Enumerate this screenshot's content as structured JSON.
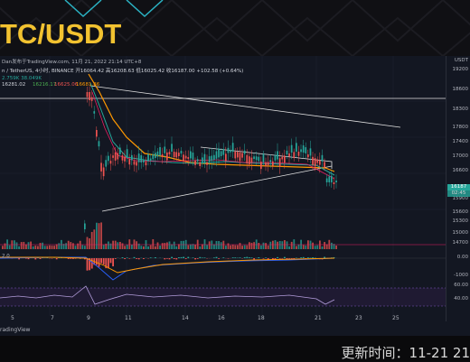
{
  "header": {
    "title": "TC/USDT"
  },
  "chart": {
    "credit": "Dan发布于TradingView.com, 11月 21, 2022 21:14 UTC+8",
    "symbol_line": "n / TetherUS, 4小时, BINANCE  开16064.42 高16208.63 低16025.42 收16187.00 +102.58 (+0.64%)",
    "ma_line": "2.759K  38.049K",
    "ind_line": "16281.02",
    "ind_values": [
      "16216.17",
      "16625.06",
      "16681.86"
    ],
    "macd_line": "2.0",
    "scale_unit": "USDT",
    "price_badge": "16187",
    "price_badge_sub": "02:45",
    "price_ticks": [
      "19200",
      "18600",
      "18300",
      "17800",
      "17400",
      "17000",
      "16600",
      "16200",
      "15900",
      "15600",
      "15300",
      "15000",
      "14700"
    ],
    "macd_ticks": [
      "0.00",
      "-1000"
    ],
    "rsi_ticks": [
      "60.00",
      "40.00"
    ],
    "x_labels": [
      "5",
      "7",
      "9",
      "11",
      "14",
      "16",
      "18",
      "21",
      "23",
      "25"
    ],
    "footer_brand": "radingView"
  },
  "footer": {
    "update_label": "更新时间：11-21 21"
  },
  "colors": {
    "title": "#f2c230",
    "up": "#26a69a",
    "down": "#ef5350",
    "ma_orange": "#ff9800",
    "ma_green": "#4caf50",
    "rsi_purple": "#7e57c2"
  }
}
